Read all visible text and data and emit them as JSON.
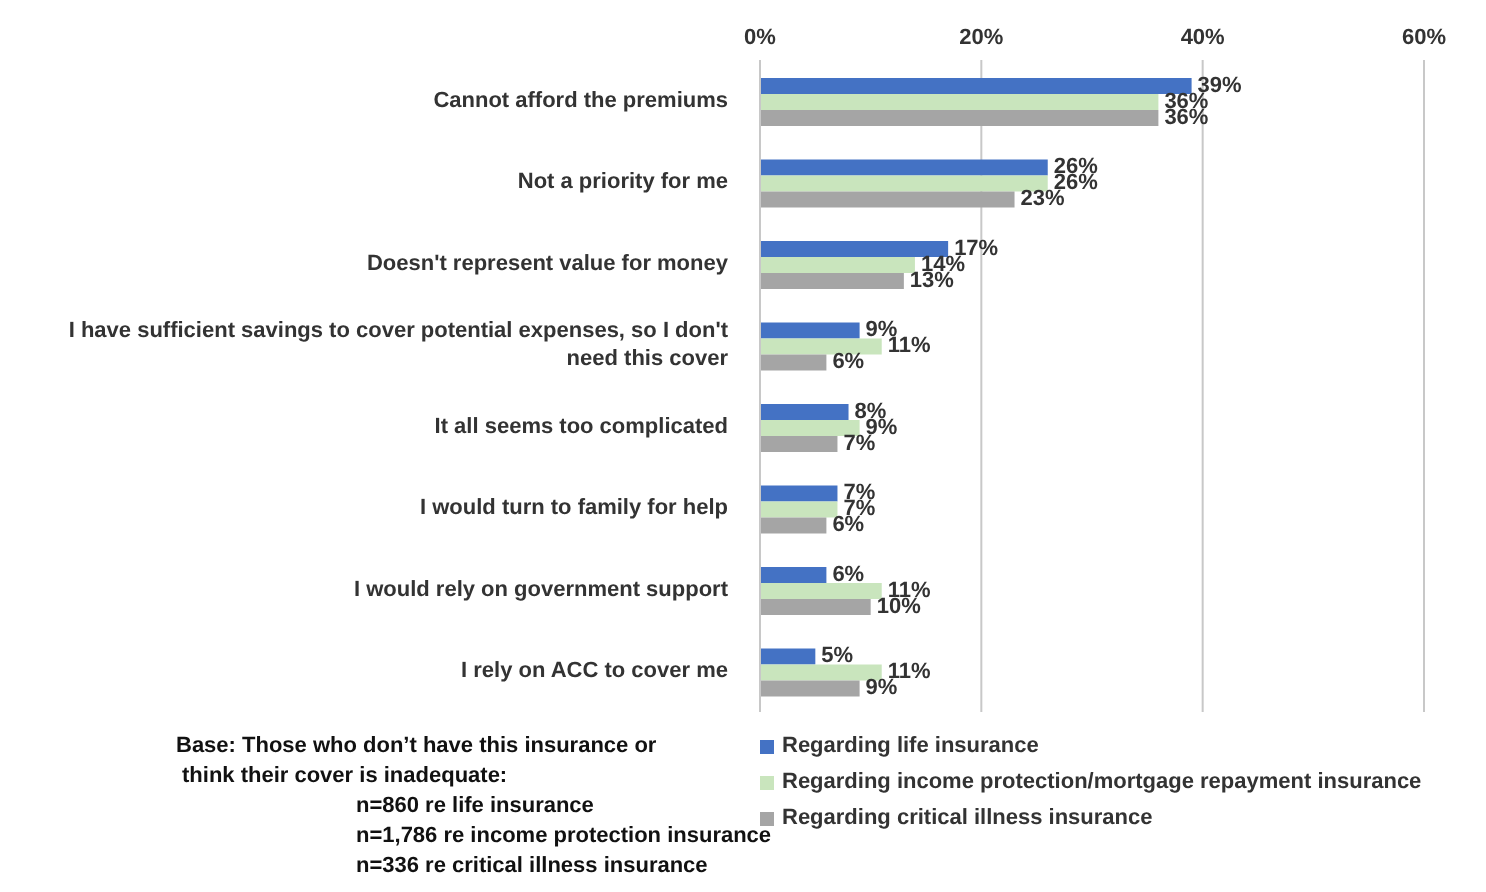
{
  "chart_data": {
    "type": "bar",
    "orientation": "horizontal",
    "categories": [
      "Cannot afford the premiums",
      "Not a priority for me",
      "Doesn't represent value for money",
      "I have sufficient savings to cover potential expenses, so I don't need this cover",
      "It all seems too complicated",
      "I would turn to family for help",
      "I would rely on government support",
      "I rely on ACC to cover me"
    ],
    "series": [
      {
        "name": "Regarding life insurance",
        "color": "#4472c4",
        "values": [
          39,
          26,
          17,
          9,
          8,
          7,
          6,
          5
        ],
        "value_labels": [
          "39%",
          "26%",
          "17%",
          "9%",
          "8%",
          "7%",
          "6%",
          "5%"
        ]
      },
      {
        "name": "Regarding income protection/mortgage repayment insurance",
        "color": "#c9e5bd",
        "values": [
          36,
          26,
          14,
          11,
          9,
          7,
          11,
          11
        ],
        "value_labels": [
          "36%",
          "26%",
          "14%",
          "11%",
          "9%",
          "7%",
          "11%",
          "11%"
        ]
      },
      {
        "name": "Regarding critical illness insurance",
        "color": "#a5a5a5",
        "values": [
          36,
          23,
          13,
          6,
          7,
          6,
          10,
          9
        ],
        "value_labels": [
          "36%",
          "23%",
          "13%",
          "6%",
          "7%",
          "6%",
          "10%",
          "9%"
        ]
      }
    ],
    "xlim": [
      0,
      60
    ],
    "xticks": [
      {
        "value": 0,
        "label": "0%"
      },
      {
        "value": 20,
        "label": "20%"
      },
      {
        "value": 40,
        "label": "40%"
      },
      {
        "value": 60,
        "label": "60%"
      }
    ],
    "grid": "x",
    "legend": "bottom right",
    "annotations": [
      "Base:  Those who don’t have this insurance or",
      "think their cover is inadequate:",
      "n=860  re life insurance",
      "n=1,786 re income protection  insurance",
      "n=336  re critical illness insurance"
    ]
  }
}
